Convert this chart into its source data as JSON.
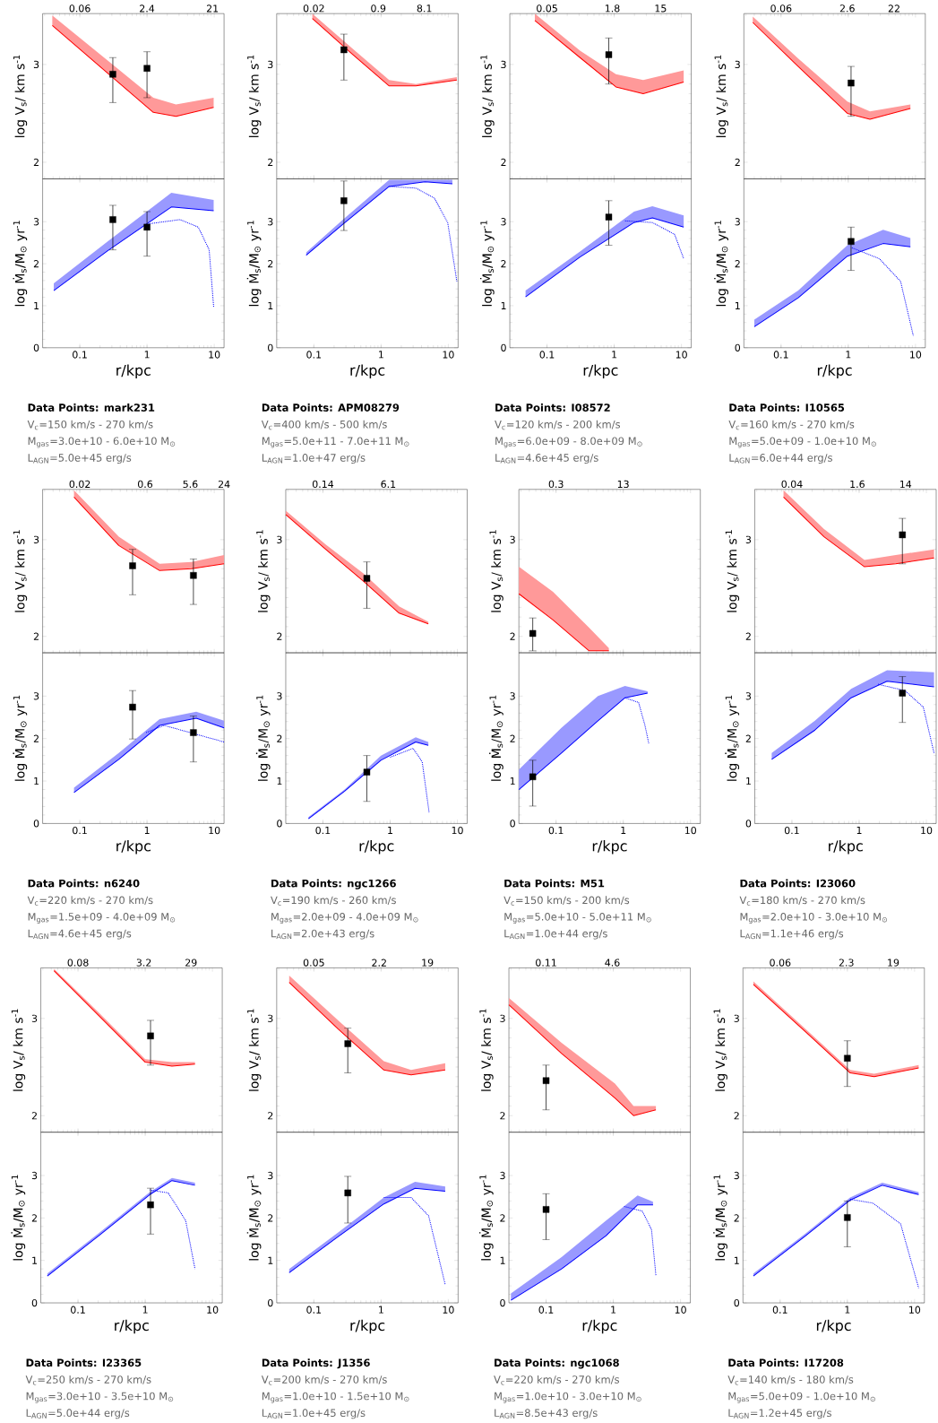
{
  "chart_data": [
    {
      "type": "line",
      "ylabel": "log V$_{s}$/ km s$^{-1}$",
      "log": "x",
      "xlim": [
        0.028,
        14
      ],
      "tick_labels": "y",
      "annotations": [
        "0.06",
        "2.4",
        "21"
      ],
      "ylim": [
        1.83,
        3.52
      ],
      "yticks": [
        2,
        3
      ],
      "series": [
        {
          "type": "line",
          "color": "#ff0000",
          "x": [
            0.039,
            0.26,
            1.24,
            2.7,
            9.8
          ],
          "values": [
            3.4,
            2.91,
            2.51,
            2.47,
            2.56
          ],
          "lower": [
            3.4,
            2.91,
            2.51,
            2.47,
            2.56
          ],
          "upper": [
            3.5,
            3.04,
            2.66,
            2.59,
            2.66
          ]
        },
        {
          "type": "scatter",
          "color": "#000000",
          "marker": "square",
          "x": [
            0.31,
            1.0
          ],
          "values": [
            2.9,
            2.96
          ],
          "errors": [
            [
              2.61,
              3.07
            ],
            [
              2.66,
              3.13
            ]
          ]
        }
      ]
    },
    {
      "type": "line",
      "xlabel": "r/kpc",
      "ylabel": "log Ṁ$_{s}$/M$_{⊙}$ yr$^{-1}$",
      "log": "x",
      "xlim": [
        0.028,
        14
      ],
      "xticks": [
        0.1,
        1,
        10
      ],
      "ylim": [
        0,
        4.02
      ],
      "yticks": [
        0,
        1,
        2,
        3
      ],
      "series": [
        {
          "type": "line",
          "color": "#0000ff",
          "x": [
            0.041,
            0.26,
            2.3,
            9.8
          ],
          "values": [
            1.36,
            2.31,
            3.35,
            3.26
          ],
          "lower": [
            1.36,
            2.31,
            3.35,
            3.26
          ],
          "upper": [
            1.53,
            2.53,
            3.69,
            3.52
          ]
        },
        {
          "type": "line",
          "color": "#0000ff",
          "line_style": "dotted",
          "x": [
            1.06,
            3.1,
            5.8,
            8.4,
            9.8
          ],
          "values": [
            2.95,
            3.05,
            2.87,
            2.33,
            0.97
          ]
        },
        {
          "type": "scatter",
          "color": "#000000",
          "marker": "square",
          "x": [
            0.31,
            1.0
          ],
          "values": [
            3.05,
            2.87
          ],
          "errors": [
            [
              2.33,
              3.39
            ],
            [
              2.18,
              3.24
            ]
          ]
        }
      ],
      "annotations": [
        "Data Points: mark231",
        "V$_{c}$=150 km/s - 270 km/s",
        "M$_{gas}$=3.0e+10 - 6.0e+10 M$_{⊙}$",
        "L$_{AGN}$=5.0e+45 erg/s"
      ]
    },
    {
      "type": "line",
      "ylabel": "log V$_{s}$/ km s$^{-1}$",
      "log": "x",
      "xlim": [
        0.028,
        14
      ],
      "tick_labels": "y",
      "annotations": [
        "0.02",
        "0.9",
        "8.1"
      ],
      "ylim": [
        1.83,
        3.52
      ],
      "yticks": [
        2,
        3
      ],
      "series": [
        {
          "type": "line",
          "color": "#ff0000",
          "x": [
            0.095,
            0.38,
            1.32,
            3.3,
            13.4
          ],
          "values": [
            3.47,
            3.1,
            2.78,
            2.78,
            2.84
          ],
          "lower": [
            3.47,
            3.1,
            2.78,
            2.78,
            2.84
          ],
          "upper": [
            3.52,
            3.16,
            2.84,
            2.8,
            2.87
          ]
        },
        {
          "type": "scatter",
          "color": "#000000",
          "marker": "square",
          "x": [
            0.28
          ],
          "values": [
            3.15
          ],
          "errors": [
            [
              2.84,
              3.31
            ]
          ]
        }
      ]
    },
    {
      "type": "line",
      "xlabel": "r/kpc",
      "ylabel": "log Ṁ$_{s}$/M$_{⊙}$ yr$^{-1}$",
      "log": "x",
      "xlim": [
        0.028,
        14
      ],
      "xticks": [
        0.1,
        1,
        10
      ],
      "ylim": [
        0,
        4.02
      ],
      "yticks": [
        0,
        1,
        2,
        3
      ],
      "series": [
        {
          "type": "line",
          "color": "#0000ff",
          "x": [
            0.077,
            0.28,
            1.32,
            4.5,
            11.5
          ],
          "values": [
            2.2,
            2.96,
            3.84,
            3.95,
            3.9
          ],
          "lower": [
            2.2,
            2.96,
            3.84,
            3.95,
            3.9
          ],
          "upper": [
            2.27,
            3.07,
            4.0,
            4.0,
            4.0
          ]
        },
        {
          "type": "line",
          "color": "#0000ff",
          "line_style": "dotted",
          "x": [
            1.32,
            3.3,
            6.2,
            9.8,
            13.4
          ],
          "values": [
            3.84,
            3.8,
            3.56,
            2.98,
            1.58
          ]
        },
        {
          "type": "scatter",
          "color": "#000000",
          "marker": "square",
          "x": [
            0.28
          ],
          "values": [
            3.5
          ],
          "errors": [
            [
              2.79,
              3.97
            ]
          ]
        }
      ],
      "annotations": [
        "Data Points: APM08279",
        "V$_{c}$=400 km/s - 500 km/s",
        "M$_{gas}$=5.0e+11 - 7.0e+11 M$_{⊙}$",
        "L$_{AGN}$=1.0e+47 erg/s"
      ]
    },
    {
      "type": "line",
      "ylabel": "log V$_{s}$/ km s$^{-1}$",
      "log": "x",
      "xlim": [
        0.028,
        14
      ],
      "tick_labels": "y",
      "annotations": [
        "0.05",
        "1.8",
        "15"
      ],
      "ylim": [
        1.83,
        3.52
      ],
      "yticks": [
        2,
        3
      ],
      "series": [
        {
          "type": "line",
          "color": "#ff0000",
          "x": [
            0.066,
            0.31,
            1.06,
            2.7,
            10.8
          ],
          "values": [
            3.45,
            3.07,
            2.77,
            2.7,
            2.82
          ],
          "lower": [
            3.45,
            3.07,
            2.77,
            2.7,
            2.82
          ],
          "upper": [
            3.52,
            3.14,
            2.9,
            2.84,
            2.94
          ]
        },
        {
          "type": "scatter",
          "color": "#000000",
          "marker": "square",
          "x": [
            0.83
          ],
          "values": [
            3.1
          ],
          "errors": [
            [
              2.8,
              3.27
            ]
          ]
        }
      ]
    },
    {
      "type": "line",
      "xlabel": "r/kpc",
      "ylabel": "log Ṁ$_{s}$/M$_{⊙}$ yr$^{-1}$",
      "log": "x",
      "xlim": [
        0.028,
        14
      ],
      "xticks": [
        0.1,
        1,
        10
      ],
      "ylim": [
        0,
        4.02
      ],
      "yticks": [
        0,
        1,
        2,
        3
      ],
      "series": [
        {
          "type": "line",
          "color": "#0000ff",
          "x": [
            0.048,
            0.31,
            1.97,
            3.7,
            10.8
          ],
          "values": [
            1.21,
            2.16,
            2.98,
            3.09,
            2.87
          ],
          "lower": [
            1.21,
            2.16,
            2.98,
            3.09,
            2.87
          ],
          "upper": [
            1.36,
            2.29,
            3.24,
            3.37,
            3.15
          ]
        },
        {
          "type": "line",
          "color": "#0000ff",
          "line_style": "dotted",
          "x": [
            1.45,
            3.7,
            7.9,
            10.8
          ],
          "values": [
            3.02,
            2.98,
            2.7,
            2.12
          ]
        },
        {
          "type": "scatter",
          "color": "#000000",
          "marker": "square",
          "x": [
            0.83
          ],
          "values": [
            3.11
          ],
          "errors": [
            [
              2.44,
              3.5
            ]
          ]
        }
      ],
      "annotations": [
        "Data Points: I08572",
        "V$_{c}$=120 km/s - 200 km/s",
        "M$_{gas}$=6.0e+09 - 8.0e+09 M$_{⊙}$",
        "L$_{AGN}$=4.6e+45 erg/s"
      ]
    },
    {
      "type": "line",
      "ylabel": "log V$_{s}$/ km s$^{-1}$",
      "log": "x",
      "xlim": [
        0.028,
        14
      ],
      "tick_labels": "y",
      "annotations": [
        "0.06",
        "2.6",
        "22"
      ],
      "ylim": [
        1.83,
        3.52
      ],
      "yticks": [
        2,
        3
      ],
      "series": [
        {
          "type": "line",
          "color": "#ff0000",
          "x": [
            0.038,
            0.18,
            0.97,
            2.1,
            8.4
          ],
          "values": [
            3.43,
            2.98,
            2.5,
            2.44,
            2.55
          ],
          "lower": [
            3.43,
            2.98,
            2.5,
            2.44,
            2.55
          ],
          "upper": [
            3.49,
            3.06,
            2.62,
            2.52,
            2.59
          ]
        },
        {
          "type": "scatter",
          "color": "#000000",
          "marker": "square",
          "x": [
            1.1
          ],
          "values": [
            2.81
          ],
          "errors": [
            [
              2.47,
              2.98
            ]
          ]
        }
      ]
    },
    {
      "type": "line",
      "xlabel": "r/kpc",
      "ylabel": "log Ṁ$_{s}$/M$_{⊙}$ yr$^{-1}$",
      "log": "x",
      "xlim": [
        0.028,
        14
      ],
      "xticks": [
        0.1,
        1,
        10
      ],
      "ylim": [
        0,
        4.02
      ],
      "yticks": [
        0,
        1,
        2,
        3
      ],
      "series": [
        {
          "type": "line",
          "color": "#0000ff",
          "x": [
            0.04,
            0.18,
            0.97,
            3.3,
            8.4
          ],
          "values": [
            0.5,
            1.19,
            2.18,
            2.48,
            2.4
          ],
          "lower": [
            0.5,
            1.19,
            2.18,
            2.48,
            2.4
          ],
          "upper": [
            0.67,
            1.36,
            2.44,
            2.81,
            2.61
          ]
        },
        {
          "type": "line",
          "color": "#0000ff",
          "line_style": "dotted",
          "x": [
            1.13,
            2.9,
            6.0,
            9.3
          ],
          "values": [
            2.38,
            2.12,
            1.58,
            0.28
          ]
        },
        {
          "type": "scatter",
          "color": "#000000",
          "marker": "square",
          "x": [
            1.1
          ],
          "values": [
            2.53
          ],
          "errors": [
            [
              1.84,
              2.87
            ]
          ]
        }
      ],
      "annotations": [
        "Data Points: I10565",
        "V$_{c}$=160 km/s - 270 km/s",
        "M$_{gas}$=5.0e+09 - 1.0e+10 M$_{⊙}$",
        "L$_{AGN}$=6.0e+44 erg/s"
      ]
    },
    {
      "type": "line",
      "ylabel": "log V$_{s}$/ km s$^{-1}$",
      "log": "x",
      "xlim": [
        0.028,
        14
      ],
      "tick_labels": "y",
      "annotations": [
        "0.02",
        "0.6",
        "5.6",
        "24"
      ],
      "ylim": [
        1.83,
        3.52
      ],
      "yticks": [
        2,
        3
      ],
      "series": [
        {
          "type": "line",
          "color": "#ff0000",
          "x": [
            0.082,
            0.38,
            1.54,
            4.6,
            14
          ],
          "values": [
            3.44,
            2.94,
            2.68,
            2.7,
            2.75
          ],
          "lower": [
            3.44,
            2.94,
            2.68,
            2.7,
            2.75
          ],
          "upper": [
            3.51,
            3.03,
            2.75,
            2.77,
            2.84
          ]
        },
        {
          "type": "scatter",
          "color": "#000000",
          "marker": "square",
          "x": [
            0.61,
            4.9
          ],
          "values": [
            2.73,
            2.63
          ],
          "errors": [
            [
              2.43,
              2.9
            ],
            [
              2.33,
              2.8
            ]
          ]
        }
      ]
    },
    {
      "type": "line",
      "xlabel": "r/kpc",
      "ylabel": "log Ṁ$_{s}$/M$_{⊙}$ yr$^{-1}$",
      "log": "x",
      "xlim": [
        0.028,
        14
      ],
      "xticks": [
        0.1,
        1,
        10
      ],
      "ylim": [
        0,
        4.02
      ],
      "yticks": [
        0,
        1,
        2,
        3
      ],
      "series": [
        {
          "type": "line",
          "color": "#0000ff",
          "x": [
            0.082,
            0.38,
            1.54,
            5.4,
            14
          ],
          "values": [
            0.73,
            1.51,
            2.31,
            2.48,
            2.25
          ],
          "lower": [
            0.73,
            1.51,
            2.31,
            2.48,
            2.25
          ],
          "upper": [
            0.84,
            1.66,
            2.46,
            2.63,
            2.42
          ]
        },
        {
          "type": "line",
          "color": "#0000ff",
          "line_style": "dotted",
          "x": [
            0.97,
            1.8,
            5.4,
            14
          ],
          "values": [
            2.14,
            2.31,
            2.1,
            1.92
          ]
        },
        {
          "type": "scatter",
          "color": "#000000",
          "marker": "square",
          "x": [
            0.61,
            4.9
          ],
          "values": [
            2.74,
            2.14
          ],
          "errors": [
            [
              1.99,
              3.13
            ],
            [
              1.45,
              2.53
            ]
          ]
        }
      ],
      "annotations": [
        "Data Points: n6240",
        "V$_{c}$=220 km/s - 270 km/s",
        "M$_{gas}$=1.5e+09 - 4.0e+09 M$_{⊙}$",
        "L$_{AGN}$=4.6e+45 erg/s"
      ]
    },
    {
      "type": "line",
      "ylabel": "log V$_{s}$/ km s$^{-1}$",
      "log": "x",
      "xlim": [
        0.028,
        14
      ],
      "tick_labels": "y",
      "annotations": [
        "0.14",
        "6.1"
      ],
      "ylim": [
        1.83,
        3.52
      ],
      "yticks": [
        2,
        3
      ],
      "series": [
        {
          "type": "line",
          "color": "#ff0000",
          "x": [
            0.028,
            0.11,
            0.4,
            1.36,
            3.7
          ],
          "values": [
            3.26,
            2.9,
            2.57,
            2.24,
            2.13
          ],
          "lower": [
            3.26,
            2.9,
            2.57,
            2.24,
            2.13
          ],
          "upper": [
            3.3,
            2.95,
            2.65,
            2.31,
            2.15
          ]
        },
        {
          "type": "scatter",
          "color": "#000000",
          "marker": "square",
          "x": [
            0.45
          ],
          "values": [
            2.6
          ],
          "errors": [
            [
              2.29,
              2.77
            ]
          ]
        }
      ]
    },
    {
      "type": "line",
      "xlabel": "r/kpc",
      "ylabel": "log Ṁ$_{s}$/M$_{⊙}$ yr$^{-1}$",
      "log": "x",
      "xlim": [
        0.028,
        14
      ],
      "xticks": [
        0.1,
        1,
        10
      ],
      "ylim": [
        0,
        4.02
      ],
      "yticks": [
        0,
        1,
        2,
        3
      ],
      "series": [
        {
          "type": "line",
          "color": "#0000ff",
          "x": [
            0.061,
            0.21,
            0.73,
            2.4,
            3.7
          ],
          "values": [
            0.11,
            0.76,
            1.49,
            1.92,
            1.84
          ],
          "lower": [
            0.11,
            0.76,
            1.49,
            1.92,
            1.84
          ],
          "upper": [
            0.15,
            0.8,
            1.6,
            2.03,
            1.92
          ]
        },
        {
          "type": "line",
          "color": "#0000ff",
          "line_style": "dotted",
          "x": [
            1.0,
            2.2,
            3.0,
            3.8
          ],
          "values": [
            1.56,
            1.77,
            1.45,
            0.26
          ]
        },
        {
          "type": "scatter",
          "color": "#000000",
          "marker": "square",
          "x": [
            0.45
          ],
          "values": [
            1.21
          ],
          "errors": [
            [
              0.52,
              1.6
            ]
          ]
        }
      ],
      "annotations": [
        "Data Points: ngc1266",
        "V$_{c}$=190 km/s - 260 km/s",
        "M$_{gas}$=2.0e+09 - 4.0e+09 M$_{⊙}$",
        "L$_{AGN}$=2.0e+43 erg/s"
      ]
    },
    {
      "type": "line",
      "ylabel": "log V$_{s}$/ km s$^{-1}$",
      "log": "x",
      "xlim": [
        0.028,
        14
      ],
      "tick_labels": "y",
      "annotations": [
        "0.3",
        "13"
      ],
      "ylim": [
        1.83,
        3.52
      ],
      "yticks": [
        2,
        3
      ],
      "series": [
        {
          "type": "line",
          "color": "#ff0000",
          "x": [
            0.028,
            0.09,
            0.31,
            0.61
          ],
          "values": [
            2.44,
            2.17,
            1.85,
            1.85
          ],
          "lower": [
            2.44,
            2.17,
            1.85,
            1.85
          ],
          "upper": [
            2.72,
            2.46,
            2.09,
            1.88
          ]
        },
        {
          "type": "scatter",
          "color": "#000000",
          "marker": "square",
          "x": [
            0.045
          ],
          "values": [
            2.03
          ],
          "errors": [
            [
              1.85,
              2.19
            ]
          ]
        }
      ]
    },
    {
      "type": "line",
      "xlabel": "r/kpc",
      "ylabel": "log Ṁ$_{s}$/M$_{⊙}$ yr$^{-1}$",
      "log": "x",
      "xlim": [
        0.028,
        14
      ],
      "xticks": [
        0.1,
        1,
        10
      ],
      "ylim": [
        0,
        4.02
      ],
      "yticks": [
        0,
        1,
        2,
        3
      ],
      "series": [
        {
          "type": "line",
          "color": "#0000ff",
          "x": [
            0.028,
            0.12,
            0.42,
            1.06,
            2.3
          ],
          "values": [
            0.8,
            1.66,
            2.42,
            2.96,
            3.07
          ],
          "lower": [
            0.8,
            1.66,
            2.42,
            2.96,
            3.07
          ],
          "upper": [
            1.27,
            2.25,
            3.0,
            3.24,
            3.11
          ]
        },
        {
          "type": "line",
          "color": "#0000ff",
          "line_style": "dotted",
          "x": [
            1.06,
            1.69,
            2.1,
            2.4
          ],
          "values": [
            2.96,
            2.85,
            2.31,
            1.88
          ]
        },
        {
          "type": "scatter",
          "color": "#000000",
          "marker": "square",
          "x": [
            0.045
          ],
          "values": [
            1.1
          ],
          "errors": [
            [
              0.41,
              1.49
            ]
          ]
        }
      ],
      "annotations": [
        "Data Points: M51",
        "V$_{c}$=150 km/s - 200 km/s",
        "M$_{gas}$=5.0e+10 - 5.0e+11 M$_{⊙}$",
        "L$_{AGN}$=1.0e+44 erg/s"
      ]
    },
    {
      "type": "line",
      "ylabel": "log V$_{s}$/ km s$^{-1}$",
      "log": "x",
      "xlim": [
        0.028,
        14
      ],
      "tick_labels": "y",
      "annotations": [
        "0.04",
        "1.6",
        "14"
      ],
      "ylim": [
        1.83,
        3.52
      ],
      "yticks": [
        2,
        3
      ],
      "series": [
        {
          "type": "line",
          "color": "#ff0000",
          "x": [
            0.075,
            0.3,
            1.2,
            3.5,
            13
          ],
          "values": [
            3.44,
            3.03,
            2.72,
            2.75,
            2.81
          ],
          "lower": [
            3.44,
            3.03,
            2.72,
            2.75,
            2.81
          ],
          "upper": [
            3.51,
            3.11,
            2.79,
            2.84,
            2.9
          ]
        },
        {
          "type": "scatter",
          "color": "#000000",
          "marker": "square",
          "x": [
            4.4
          ],
          "values": [
            3.05
          ],
          "errors": [
            [
              2.75,
              3.22
            ]
          ]
        }
      ]
    },
    {
      "type": "line",
      "xlabel": "r/kpc",
      "ylabel": "log Ṁ$_{s}$/M$_{⊙}$ yr$^{-1}$",
      "log": "x",
      "xlim": [
        0.028,
        14
      ],
      "xticks": [
        0.1,
        1,
        10
      ],
      "ylim": [
        0,
        4.02
      ],
      "yticks": [
        0,
        1,
        2,
        3
      ],
      "series": [
        {
          "type": "line",
          "color": "#0000ff",
          "x": [
            0.05,
            0.22,
            0.76,
            2.6,
            13
          ],
          "values": [
            1.51,
            2.2,
            2.96,
            3.35,
            3.22
          ],
          "lower": [
            1.51,
            2.2,
            2.96,
            3.35,
            3.22
          ],
          "upper": [
            1.66,
            2.42,
            3.17,
            3.61,
            3.56
          ]
        },
        {
          "type": "line",
          "color": "#0000ff",
          "line_style": "dotted",
          "x": [
            1.9,
            4.8,
            9.0,
            13
          ],
          "values": [
            3.28,
            3.13,
            2.74,
            1.66
          ]
        },
        {
          "type": "scatter",
          "color": "#000000",
          "marker": "square",
          "x": [
            4.4
          ],
          "values": [
            3.07
          ],
          "errors": [
            [
              2.38,
              3.46
            ]
          ]
        }
      ],
      "annotations": [
        "Data Points: I23060",
        "V$_{c}$=180 km/s - 270 km/s",
        "M$_{gas}$=2.0e+10 - 3.0e+10 M$_{⊙}$",
        "L$_{AGN}$=1.1e+46 erg/s"
      ]
    },
    {
      "type": "line",
      "ylabel": "log V$_{s}$/ km s$^{-1}$",
      "log": "x",
      "xlim": [
        0.028,
        14
      ],
      "tick_labels": "y",
      "annotations": [
        "0.08",
        "3.2",
        "29"
      ],
      "ylim": [
        1.83,
        3.52
      ],
      "yticks": [
        2,
        3
      ],
      "series": [
        {
          "type": "line",
          "color": "#ff0000",
          "x": [
            0.044,
            0.21,
            1.0,
            2.5,
            5.5
          ],
          "values": [
            3.49,
            3.02,
            2.55,
            2.51,
            2.53
          ],
          "lower": [
            3.49,
            3.02,
            2.55,
            2.51,
            2.53
          ],
          "upper": [
            3.51,
            3.05,
            2.58,
            2.55,
            2.55
          ]
        },
        {
          "type": "scatter",
          "color": "#000000",
          "marker": "square",
          "x": [
            1.2
          ],
          "values": [
            2.82
          ],
          "errors": [
            [
              2.52,
              2.98
            ]
          ]
        }
      ]
    },
    {
      "type": "line",
      "xlabel": "r/kpc",
      "ylabel": "log Ṁ$_{s}$/M$_{⊙}$ yr$^{-1}$",
      "log": "x",
      "xlim": [
        0.028,
        14
      ],
      "xticks": [
        0.1,
        1,
        10
      ],
      "ylim": [
        0,
        4.02
      ],
      "yticks": [
        0,
        1,
        2,
        3
      ],
      "series": [
        {
          "type": "line",
          "color": "#0000ff",
          "x": [
            0.035,
            0.21,
            1.17,
            2.5,
            5.5
          ],
          "values": [
            0.63,
            1.6,
            2.55,
            2.88,
            2.77
          ],
          "lower": [
            0.63,
            1.6,
            2.55,
            2.88,
            2.77
          ],
          "upper": [
            0.69,
            1.66,
            2.61,
            2.94,
            2.83
          ]
        },
        {
          "type": "line",
          "color": "#0000ff",
          "line_style": "dotted",
          "x": [
            1.17,
            2.2,
            4.0,
            5.5
          ],
          "values": [
            2.66,
            2.59,
            1.94,
            0.8
          ]
        },
        {
          "type": "scatter",
          "color": "#000000",
          "marker": "square",
          "x": [
            1.2
          ],
          "values": [
            2.31
          ],
          "errors": [
            [
              1.62,
              2.7
            ]
          ]
        }
      ],
      "annotations": [
        "Data Points: I23365",
        "V$_{c}$=250 km/s - 270 km/s",
        "M$_{gas}$=3.0e+10 - 3.5e+10 M$_{⊙}$",
        "L$_{AGN}$=5.0e+44 erg/s"
      ]
    },
    {
      "type": "line",
      "ylabel": "log V$_{s}$/ km s$^{-1}$",
      "log": "x",
      "xlim": [
        0.028,
        14
      ],
      "tick_labels": "y",
      "annotations": [
        "0.05",
        "2.2",
        "19"
      ],
      "ylim": [
        1.83,
        3.52
      ],
      "yticks": [
        2,
        3
      ],
      "series": [
        {
          "type": "line",
          "color": "#ff0000",
          "x": [
            0.043,
            0.23,
            1.1,
            2.8,
            9
          ],
          "values": [
            3.37,
            2.89,
            2.47,
            2.42,
            2.47
          ],
          "lower": [
            3.37,
            2.89,
            2.47,
            2.42,
            2.47
          ],
          "upper": [
            3.44,
            2.98,
            2.56,
            2.47,
            2.54
          ]
        },
        {
          "type": "scatter",
          "color": "#000000",
          "marker": "square",
          "x": [
            0.32
          ],
          "values": [
            2.74
          ],
          "errors": [
            [
              2.44,
              2.9
            ]
          ]
        }
      ]
    },
    {
      "type": "line",
      "xlabel": "r/kpc",
      "ylabel": "log Ṁ$_{s}$/M$_{⊙}$ yr$^{-1}$",
      "log": "x",
      "xlim": [
        0.028,
        14
      ],
      "xticks": [
        0.1,
        1,
        10
      ],
      "ylim": [
        0,
        4.02
      ],
      "yticks": [
        0,
        1,
        2,
        3
      ],
      "series": [
        {
          "type": "line",
          "color": "#0000ff",
          "x": [
            0.043,
            0.23,
            1.1,
            3.2,
            9
          ],
          "values": [
            0.71,
            1.56,
            2.33,
            2.7,
            2.63
          ],
          "lower": [
            0.71,
            1.56,
            2.33,
            2.7,
            2.63
          ],
          "upper": [
            0.8,
            1.66,
            2.48,
            2.85,
            2.74
          ]
        },
        {
          "type": "line",
          "color": "#0000ff",
          "line_style": "dotted",
          "x": [
            1.1,
            2.8,
            5.1,
            9
          ],
          "values": [
            2.48,
            2.48,
            2.05,
            0.43
          ]
        },
        {
          "type": "scatter",
          "color": "#000000",
          "marker": "square",
          "x": [
            0.32
          ],
          "values": [
            2.59
          ],
          "errors": [
            [
              1.88,
              2.98
            ]
          ]
        }
      ],
      "annotations": [
        "Data Points: J1356",
        "V$_{c}$=200 km/s - 270 km/s",
        "M$_{gas}$=1.0e+10 - 1.5e+10 M$_{⊙}$",
        "L$_{AGN}$=1.0e+45 erg/s"
      ]
    },
    {
      "type": "line",
      "ylabel": "log V$_{s}$/ km s$^{-1}$",
      "log": "x",
      "xlim": [
        0.028,
        14
      ],
      "tick_labels": "y",
      "annotations": [
        "0.11",
        "4.6"
      ],
      "ylim": [
        1.83,
        3.52
      ],
      "yticks": [
        2,
        3
      ],
      "series": [
        {
          "type": "line",
          "color": "#ff0000",
          "x": [
            0.028,
            0.17,
            1.06,
            2.0,
            4.3
          ],
          "values": [
            3.14,
            2.64,
            2.18,
            2.0,
            2.06
          ],
          "lower": [
            3.14,
            2.64,
            2.18,
            2.0,
            2.06
          ],
          "upper": [
            3.21,
            2.75,
            2.33,
            2.1,
            2.1
          ]
        },
        {
          "type": "scatter",
          "color": "#000000",
          "marker": "square",
          "x": [
            0.1
          ],
          "values": [
            2.36
          ],
          "errors": [
            [
              2.06,
              2.52
            ]
          ]
        }
      ]
    },
    {
      "type": "line",
      "xlabel": "r/kpc",
      "ylabel": "log Ṁ$_{s}$/M$_{⊙}$ yr$^{-1}$",
      "log": "x",
      "xlim": [
        0.028,
        14
      ],
      "xticks": [
        0.1,
        1,
        10
      ],
      "ylim": [
        0,
        4.02
      ],
      "yticks": [
        0,
        1,
        2,
        3
      ],
      "series": [
        {
          "type": "line",
          "color": "#0000ff",
          "x": [
            0.03,
            0.17,
            0.78,
            2.3,
            3.9
          ],
          "values": [
            0.06,
            0.8,
            1.58,
            2.31,
            2.31
          ],
          "lower": [
            0.06,
            0.8,
            1.58,
            2.31,
            2.31
          ],
          "upper": [
            0.22,
            1.08,
            1.94,
            2.53,
            2.38
          ]
        },
        {
          "type": "line",
          "color": "#0000ff",
          "line_style": "dotted",
          "x": [
            1.45,
            2.7,
            3.7,
            4.3
          ],
          "values": [
            2.27,
            2.16,
            1.73,
            0.65
          ]
        },
        {
          "type": "scatter",
          "color": "#000000",
          "marker": "square",
          "x": [
            0.1
          ],
          "values": [
            2.2
          ],
          "errors": [
            [
              1.49,
              2.57
            ]
          ]
        }
      ],
      "annotations": [
        "Data Points: ngc1068",
        "V$_{c}$=220 km/s - 270 km/s",
        "M$_{gas}$=1.0e+10 - 3.0e+10 M$_{⊙}$",
        "L$_{AGN}$=8.5e+43 erg/s"
      ]
    },
    {
      "type": "line",
      "ylabel": "log V$_{s}$/ km s$^{-1}$",
      "log": "x",
      "xlim": [
        0.028,
        14
      ],
      "tick_labels": "y",
      "annotations": [
        "0.06",
        "2.3",
        "19"
      ],
      "ylim": [
        1.83,
        3.52
      ],
      "yticks": [
        2,
        3
      ],
      "series": [
        {
          "type": "line",
          "color": "#ff0000",
          "x": [
            0.04,
            0.24,
            1.1,
            2.5,
            11.5
          ],
          "values": [
            3.35,
            2.86,
            2.44,
            2.4,
            2.49
          ],
          "lower": [
            3.35,
            2.86,
            2.44,
            2.4,
            2.49
          ],
          "upper": [
            3.38,
            2.89,
            2.47,
            2.43,
            2.52
          ]
        },
        {
          "type": "scatter",
          "color": "#000000",
          "marker": "square",
          "x": [
            1.0
          ],
          "values": [
            2.59
          ],
          "errors": [
            [
              2.3,
              2.77
            ]
          ]
        }
      ]
    },
    {
      "type": "line",
      "xlabel": "r/kpc",
      "ylabel": "log Ṁ$_{s}$/M$_{⊙}$ yr$^{-1}$",
      "log": "x",
      "xlim": [
        0.028,
        14
      ],
      "xticks": [
        0.1,
        1,
        10
      ],
      "ylim": [
        0,
        4.02
      ],
      "yticks": [
        0,
        1,
        2,
        3
      ],
      "series": [
        {
          "type": "line",
          "color": "#0000ff",
          "x": [
            0.04,
            0.24,
            1.1,
            3.3,
            11.5
          ],
          "values": [
            0.63,
            1.58,
            2.42,
            2.77,
            2.55
          ],
          "lower": [
            0.63,
            1.58,
            2.42,
            2.77,
            2.55
          ],
          "upper": [
            0.69,
            1.64,
            2.48,
            2.83,
            2.61
          ]
        },
        {
          "type": "line",
          "color": "#0000ff",
          "line_style": "dotted",
          "x": [
            1.1,
            2.4,
            6.2,
            11.5
          ],
          "values": [
            2.44,
            2.35,
            1.86,
            0.35
          ]
        },
        {
          "type": "scatter",
          "color": "#000000",
          "marker": "square",
          "x": [
            1.0
          ],
          "values": [
            2.01
          ],
          "errors": [
            [
              1.32,
              2.4
            ]
          ]
        }
      ],
      "annotations": [
        "Data Points: I17208",
        "V$_{c}$=140 km/s - 180 km/s",
        "M$_{gas}$=5.0e+09 - 1.0e+10 M$_{⊙}$",
        "L$_{AGN}$=1.2e+45 erg/s"
      ]
    }
  ]
}
